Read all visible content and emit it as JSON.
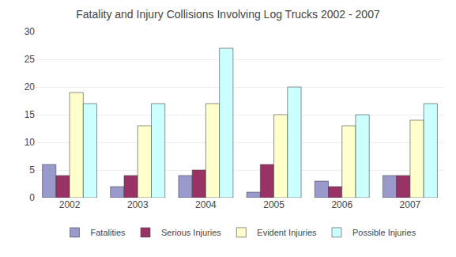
{
  "chart_data": {
    "type": "bar",
    "title": "Fatality and Injury Collisions Involving Log Trucks 2002 - 2007",
    "categories": [
      "2002",
      "2003",
      "2004",
      "2005",
      "2006",
      "2007"
    ],
    "series": [
      {
        "name": "Fatalities",
        "color": "#9999CC",
        "values": [
          6,
          2,
          4,
          1,
          3,
          4
        ]
      },
      {
        "name": "Serious Injuries",
        "color": "#993366",
        "values": [
          4,
          4,
          5,
          6,
          2,
          4
        ]
      },
      {
        "name": "Evident Injuries",
        "color": "#FFFFCC",
        "values": [
          19,
          13,
          17,
          15,
          13,
          14
        ]
      },
      {
        "name": "Possible Injuries",
        "color": "#CCFFFF",
        "values": [
          17,
          17,
          27,
          20,
          15,
          17
        ]
      }
    ],
    "ylim": [
      0,
      30
    ],
    "yticks": [
      0,
      5,
      10,
      15,
      20,
      25,
      30
    ],
    "grid": true,
    "legend": "bottom"
  }
}
